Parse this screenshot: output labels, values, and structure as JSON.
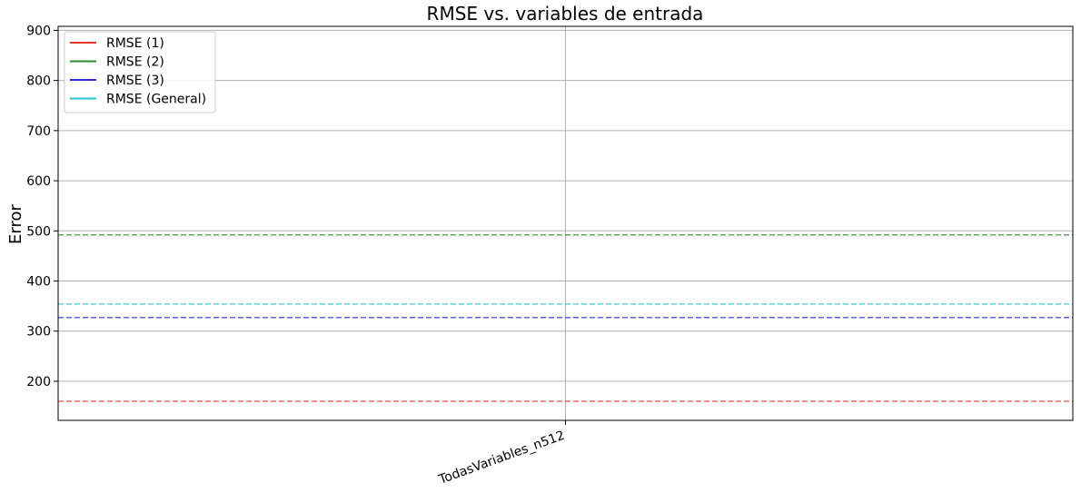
{
  "chart_data": {
    "type": "line",
    "title": "RMSE vs. variables de entrada",
    "xlabel": "",
    "ylabel": "Error",
    "categories": [
      "TodasVariables_n512"
    ],
    "ylim": [
      122,
      908
    ],
    "yticks": [
      200,
      300,
      400,
      500,
      600,
      700,
      800,
      900
    ],
    "grid": true,
    "legend_position": "top-left",
    "series": [
      {
        "name": "RMSE (1)",
        "values": [
          160
        ],
        "color": "#e8322a",
        "line_style": "dashed"
      },
      {
        "name": "RMSE (2)",
        "values": [
          492
        ],
        "color": "#2e8b2e",
        "line_style": "dashed"
      },
      {
        "name": "RMSE (3)",
        "values": [
          327
        ],
        "color": "#2c2cd8",
        "line_style": "dashed"
      },
      {
        "name": "RMSE (General)",
        "values": [
          354
        ],
        "color": "#27c3cf",
        "line_style": "dashed"
      }
    ]
  }
}
